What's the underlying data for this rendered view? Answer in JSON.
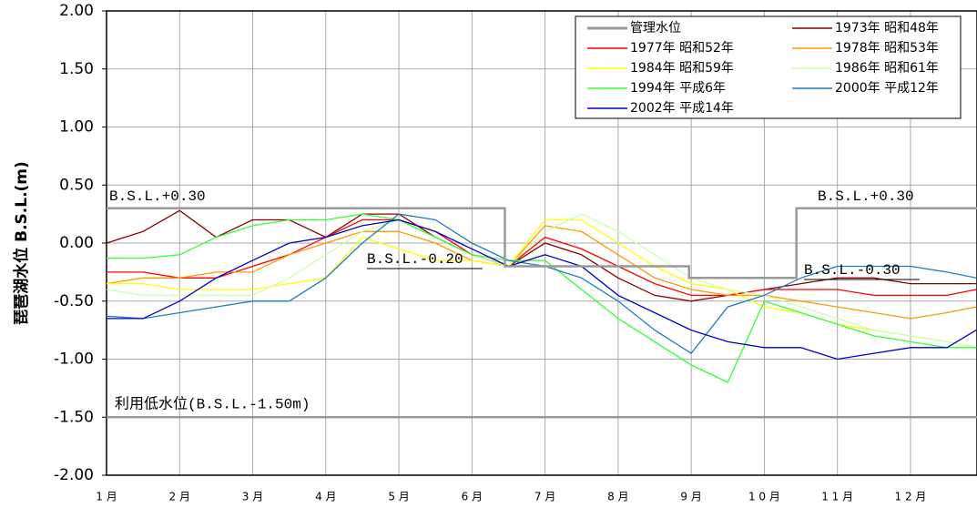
{
  "chart_data": {
    "type": "line",
    "y_label": "琵琶湖水位 B.S.L.(m)",
    "x": [
      1,
      1.5,
      2,
      2.5,
      3,
      3.5,
      4,
      4.5,
      5,
      5.5,
      6,
      6.5,
      7,
      7.5,
      8,
      8.5,
      9,
      9.5,
      10,
      10.5,
      11,
      11.5,
      12,
      12.5,
      12.9
    ],
    "xlim": [
      1,
      12.91
    ],
    "xticks": [
      {
        "value": 1,
        "label": "1 月"
      },
      {
        "value": 2,
        "label": "2 月"
      },
      {
        "value": 3,
        "label": "3 月"
      },
      {
        "value": 4,
        "label": "4 月"
      },
      {
        "value": 5,
        "label": "5 月"
      },
      {
        "value": 6,
        "label": "6 月"
      },
      {
        "value": 7,
        "label": "7 月"
      },
      {
        "value": 8,
        "label": "8 月"
      },
      {
        "value": 9,
        "label": "9 月"
      },
      {
        "value": 10,
        "label": "1 0 月"
      },
      {
        "value": 11,
        "label": "1 1 月"
      },
      {
        "value": 12,
        "label": "1 2 月"
      }
    ],
    "ylim": [
      -2,
      2
    ],
    "yticks": [
      {
        "value": 2,
        "label": "2.00"
      },
      {
        "value": 1.5,
        "label": "1.50"
      },
      {
        "value": 1,
        "label": "1.00"
      },
      {
        "value": 0.5,
        "label": "0.50"
      },
      {
        "value": 0,
        "label": "0.00"
      },
      {
        "value": -0.5,
        "label": "-0.50"
      },
      {
        "value": -1,
        "label": "-1.00"
      },
      {
        "value": -1.5,
        "label": "-1.50"
      },
      {
        "value": -2,
        "label": "-2.00"
      }
    ],
    "grid": true,
    "legend": "upper right",
    "series": [
      {
        "name": "管理水位",
        "color": "#999999",
        "x": [
          1,
          6.45,
          6.45,
          8.97,
          8.97,
          10.44,
          10.44,
          12.91
        ],
        "values": [
          0.3,
          0.3,
          -0.2,
          -0.2,
          -0.3,
          -0.3,
          0.3,
          0.3
        ]
      },
      {
        "name": "1973年 昭和48年",
        "color": "#8b0000",
        "values": [
          0.0,
          0.1,
          0.28,
          0.05,
          0.2,
          0.2,
          0.05,
          0.25,
          0.25,
          0.05,
          -0.1,
          -0.2,
          0.0,
          -0.1,
          -0.3,
          -0.45,
          -0.5,
          -0.45,
          -0.4,
          -0.35,
          -0.3,
          -0.3,
          -0.35,
          -0.35,
          -0.35
        ]
      },
      {
        "name": "1977年 昭和52年",
        "color": "#ff0000",
        "values": [
          -0.25,
          -0.25,
          -0.3,
          -0.3,
          -0.2,
          -0.1,
          0.05,
          0.2,
          0.2,
          0.1,
          -0.1,
          -0.2,
          0.05,
          -0.05,
          -0.2,
          -0.35,
          -0.45,
          -0.45,
          -0.4,
          -0.4,
          -0.4,
          -0.45,
          -0.45,
          -0.45,
          -0.4
        ]
      },
      {
        "name": "1978年 昭和53年",
        "color": "#ff9900",
        "values": [
          -0.35,
          -0.3,
          -0.3,
          -0.25,
          -0.25,
          -0.1,
          0.0,
          0.1,
          0.1,
          0.0,
          -0.15,
          -0.2,
          0.15,
          0.1,
          -0.1,
          -0.3,
          -0.4,
          -0.45,
          -0.45,
          -0.5,
          -0.55,
          -0.6,
          -0.65,
          -0.6,
          -0.55
        ]
      },
      {
        "name": "1984年 昭和59年",
        "color": "#ffff00",
        "values": [
          -0.35,
          -0.35,
          -0.4,
          -0.4,
          -0.4,
          -0.35,
          -0.3,
          0.05,
          -0.05,
          -0.15,
          -0.15,
          -0.2,
          0.2,
          0.2,
          0.0,
          -0.2,
          -0.35,
          -0.4,
          -0.55,
          -0.6,
          -0.7,
          -0.75,
          -0.8,
          -0.85,
          -0.9
        ]
      },
      {
        "name": "1986年 昭和61年",
        "color": "#ccffaa",
        "values": [
          -0.4,
          -0.45,
          -0.45,
          -0.45,
          -0.45,
          -0.3,
          -0.1,
          0.1,
          0.2,
          0.05,
          -0.1,
          -0.2,
          0.1,
          0.25,
          0.1,
          -0.1,
          -0.3,
          -0.4,
          -0.45,
          -0.55,
          -0.65,
          -0.75,
          -0.8,
          -0.85,
          -0.9
        ]
      },
      {
        "name": "1994年 平成6年",
        "color": "#33ff33",
        "values": [
          -0.13,
          -0.13,
          -0.1,
          0.05,
          0.15,
          0.2,
          0.2,
          0.25,
          0.2,
          0.05,
          -0.1,
          -0.15,
          -0.15,
          -0.4,
          -0.65,
          -0.85,
          -1.05,
          -1.2,
          -0.5,
          -0.6,
          -0.7,
          -0.8,
          -0.85,
          -0.9,
          -0.9
        ]
      },
      {
        "name": "2000年 平成12年",
        "color": "#1e7fc0",
        "values": [
          -0.63,
          -0.65,
          -0.6,
          -0.55,
          -0.5,
          -0.5,
          -0.3,
          0.0,
          0.25,
          0.2,
          0.0,
          -0.15,
          -0.2,
          -0.3,
          -0.5,
          -0.75,
          -0.95,
          -0.55,
          -0.45,
          -0.3,
          -0.2,
          -0.2,
          -0.2,
          -0.25,
          -0.3
        ]
      },
      {
        "name": "2002年 平成14年",
        "color": "#0000cc",
        "values": [
          -0.65,
          -0.65,
          -0.5,
          -0.3,
          -0.15,
          0.0,
          0.05,
          0.15,
          0.2,
          0.1,
          -0.05,
          -0.2,
          -0.1,
          -0.2,
          -0.45,
          -0.6,
          -0.75,
          -0.85,
          -0.9,
          -0.9,
          -1.0,
          -0.95,
          -0.9,
          -0.9,
          -0.75
        ]
      }
    ],
    "reference_line": {
      "value": -1.5,
      "label": "利用低水位(B.S.L.-1.50m)",
      "color": "#999999"
    },
    "annotations": [
      "B.S.L.+0.30",
      "B.S.L.+0.30",
      "B.S.L.-0.20",
      "B.S.L.-0.30"
    ]
  }
}
